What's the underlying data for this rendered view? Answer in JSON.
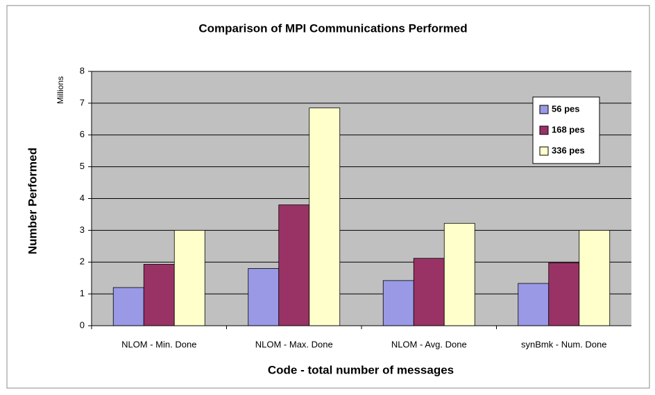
{
  "chart_data": {
    "type": "bar",
    "title": "Comparison of MPI Communications Performed",
    "x_label": "Code - total number of messages",
    "y_label": "Number Performed",
    "y_unit": "Millions",
    "categories": [
      "NLOM - Min. Done",
      "NLOM - Max. Done",
      "NLOM - Avg. Done",
      "synBmk - Num. Done"
    ],
    "series": [
      {
        "name": "56 pes",
        "color": "#9999e6",
        "values": [
          1.2,
          1.8,
          1.42,
          1.33
        ]
      },
      {
        "name": "168 pes",
        "color": "#993366",
        "values": [
          1.93,
          3.8,
          2.12,
          1.98
        ]
      },
      {
        "name": "336 pes",
        "color": "#ffffcc",
        "values": [
          3.0,
          6.85,
          3.22,
          3.0
        ]
      }
    ],
    "ylim": [
      0,
      8
    ],
    "yticks": [
      0,
      1,
      2,
      3,
      4,
      5,
      6,
      7,
      8
    ],
    "grid": true,
    "legend": "upper right"
  }
}
